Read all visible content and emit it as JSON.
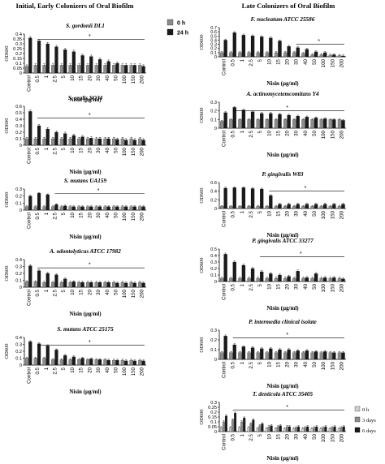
{
  "figure": {
    "left_heading": "Initial, Early Colonizers of Oral Biofilm",
    "right_heading": "Late  Colonizers of Oral Biofilm",
    "common_xlabel": "Nisin (µg/ml)",
    "common_ylabel": "OD600",
    "categories": [
      "Control",
      "0.5",
      "1",
      "2.5",
      "5",
      "10",
      "15",
      "20",
      "30",
      "40",
      "50",
      "100",
      "150",
      "200"
    ],
    "legend_top": [
      {
        "name": "0 h",
        "color": "#8c8c8c"
      },
      {
        "name": "24 h",
        "color": "#1a1a1a"
      }
    ],
    "legend_bottom": [
      {
        "name": "0 h",
        "color": "#d0d0d0"
      },
      {
        "name": "3 days",
        "color": "#8c8c8c"
      },
      {
        "name": "6 days",
        "color": "#1a1a1a"
      }
    ],
    "significance_mark": "*"
  },
  "chart_data": [
    {
      "id": "p1",
      "type": "bar",
      "title": "S. gordonii DL1",
      "ylim": [
        0,
        0.4
      ],
      "yticks": [
        "0",
        "0.05",
        "0.1",
        "0.15",
        "0.2",
        "0.25",
        "0.3",
        "0.35",
        "0.4"
      ],
      "series": [
        {
          "name": "0 h",
          "values": [
            0.07,
            0.08,
            0.08,
            0.08,
            0.08,
            0.08,
            0.08,
            0.08,
            0.08,
            0.08,
            0.08,
            0.08,
            0.08,
            0.08
          ]
        },
        {
          "name": "24 h",
          "values": [
            0.36,
            0.33,
            0.3,
            0.27,
            0.24,
            0.22,
            0.18,
            0.17,
            0.14,
            0.12,
            0.1,
            0.08,
            0.08,
            0.07
          ]
        }
      ]
    },
    {
      "id": "p2",
      "type": "bar",
      "title": "S. oralis SO34",
      "ylim": [
        0,
        0.6
      ],
      "yticks": [
        "0",
        "0.1",
        "0.2",
        "0.3",
        "0.4",
        "0.5",
        "0.6"
      ],
      "series": [
        {
          "name": "0 h",
          "values": [
            0.1,
            0.1,
            0.1,
            0.1,
            0.1,
            0.1,
            0.1,
            0.1,
            0.1,
            0.1,
            0.1,
            0.1,
            0.1,
            0.1
          ]
        },
        {
          "name": "24 h",
          "values": [
            0.52,
            0.3,
            0.25,
            0.2,
            0.18,
            0.15,
            0.13,
            0.11,
            0.1,
            0.1,
            0.09,
            0.08,
            0.08,
            0.08
          ]
        }
      ]
    },
    {
      "id": "p3",
      "type": "bar",
      "title": "S. mutans UA159",
      "ylim": [
        0,
        0.3
      ],
      "yticks": [
        "0",
        "0.1",
        "0.2",
        "0.3"
      ],
      "series": [
        {
          "name": "0 h",
          "values": [
            0.05,
            0.05,
            0.05,
            0.05,
            0.05,
            0.05,
            0.05,
            0.05,
            0.05,
            0.05,
            0.05,
            0.05,
            0.05,
            0.05
          ]
        },
        {
          "name": "24 h",
          "values": [
            0.2,
            0.24,
            0.22,
            0.08,
            0.06,
            0.05,
            0.05,
            0.05,
            0.05,
            0.05,
            0.05,
            0.05,
            0.05,
            0.05
          ]
        }
      ]
    },
    {
      "id": "p4",
      "type": "bar",
      "title": "A. odontolyticus ATCC 17982",
      "ylim": [
        0,
        0.4
      ],
      "yticks": [
        "0",
        "0.1",
        "0.2",
        "0.3",
        "0.4"
      ],
      "series": [
        {
          "name": "0 h",
          "values": [
            0.08,
            0.08,
            0.07,
            0.07,
            0.07,
            0.07,
            0.07,
            0.07,
            0.07,
            0.07,
            0.07,
            0.07,
            0.07,
            0.07
          ]
        },
        {
          "name": "24 h",
          "values": [
            0.31,
            0.24,
            0.2,
            0.18,
            0.12,
            0.08,
            0.07,
            0.07,
            0.07,
            0.07,
            0.06,
            0.06,
            0.06,
            0.06
          ]
        }
      ]
    },
    {
      "id": "p5",
      "type": "bar",
      "title": "S. mutans ATCC 25175",
      "ylim": [
        0,
        0.4
      ],
      "yticks": [
        "0",
        "0.1",
        "0.2",
        "0.3",
        "0.4"
      ],
      "series": [
        {
          "name": "0 h",
          "values": [
            0.1,
            0.1,
            0.1,
            0.08,
            0.08,
            0.08,
            0.08,
            0.08,
            0.08,
            0.08,
            0.07,
            0.07,
            0.07,
            0.07
          ]
        },
        {
          "name": "24 h",
          "values": [
            0.34,
            0.31,
            0.28,
            0.22,
            0.14,
            0.12,
            0.1,
            0.09,
            0.08,
            0.07,
            0.07,
            0.06,
            0.06,
            0.06
          ]
        }
      ]
    },
    {
      "id": "p6",
      "type": "bar",
      "title": "F. nucleatum ATCC 25586",
      "ylim": [
        0,
        0.7
      ],
      "yticks": [
        "0",
        "0.1",
        "0.2",
        "0.3",
        "0.4",
        "0.5",
        "0.6",
        "0.7"
      ],
      "series": [
        {
          "name": "0 h",
          "values": [
            0.1,
            0.1,
            0.1,
            0.1,
            0.1,
            0.1,
            0.1,
            0.1,
            0.1,
            0.08,
            0.05,
            0.05,
            0.04,
            0.03
          ]
        },
        {
          "name": "24 h",
          "values": [
            0.4,
            0.58,
            0.52,
            0.5,
            0.48,
            0.45,
            0.38,
            0.25,
            0.22,
            0.18,
            0.12,
            0.1,
            0.05,
            0.02
          ]
        }
      ]
    },
    {
      "id": "p7",
      "type": "bar",
      "title": "A. actinomycetemcomitans  Y4",
      "ylim": [
        0,
        0.3
      ],
      "yticks": [
        "0",
        "0.1",
        "0.2",
        "0.3"
      ],
      "series": [
        {
          "name": "0 h",
          "values": [
            0.08,
            0.1,
            0.1,
            0.1,
            0.1,
            0.1,
            0.1,
            0.1,
            0.1,
            0.1,
            0.1,
            0.1,
            0.1,
            0.1
          ]
        },
        {
          "name": "24 h",
          "values": [
            0.18,
            0.24,
            0.21,
            0.19,
            0.17,
            0.17,
            0.16,
            0.15,
            0.14,
            0.13,
            0.12,
            0.11,
            0.1,
            0.09
          ]
        }
      ]
    },
    {
      "id": "p8",
      "type": "bar",
      "title": "P. gingivalis  W83",
      "ylim": [
        0,
        0.6
      ],
      "yticks": [
        "0",
        "0.2",
        "0.4",
        "0.6"
      ],
      "series": [
        {
          "name": "0 h",
          "values": [
            0.05,
            0.05,
            0.05,
            0.05,
            0.05,
            0.05,
            0.05,
            0.05,
            0.05,
            0.05,
            0.05,
            0.05,
            0.05,
            0.05
          ]
        },
        {
          "name": "24 h",
          "values": [
            0.47,
            0.48,
            0.48,
            0.46,
            0.45,
            0.3,
            0.1,
            0.1,
            0.1,
            0.1,
            0.1,
            0.1,
            0.1,
            0.1
          ]
        }
      ]
    },
    {
      "id": "p9",
      "type": "bar",
      "title": "P. gingivalis ATCC 33277",
      "ylim": [
        0,
        0.5
      ],
      "yticks": [
        "0",
        "0.1",
        "0.2",
        "0.3",
        "0.4",
        "0.5"
      ],
      "series": [
        {
          "name": "0 h",
          "values": [
            0.05,
            0.05,
            0.05,
            0.05,
            0.05,
            0.05,
            0.05,
            0.05,
            0.05,
            0.05,
            0.05,
            0.05,
            0.05,
            0.05
          ]
        },
        {
          "name": "24 h",
          "values": [
            0.42,
            0.3,
            0.25,
            0.2,
            0.15,
            0.12,
            0.1,
            0.08,
            0.16,
            0.06,
            0.12,
            0.06,
            0.06,
            0.04
          ]
        }
      ]
    },
    {
      "id": "p10",
      "type": "bar",
      "title": "P. intermedia clinical isolate",
      "ylim": [
        0,
        0.3
      ],
      "yticks": [
        "0",
        "0.1",
        "0.2",
        "0.3"
      ],
      "series": [
        {
          "name": "0 h",
          "values": [
            0.07,
            0.07,
            0.07,
            0.07,
            0.07,
            0.07,
            0.07,
            0.07,
            0.07,
            0.07,
            0.07,
            0.07,
            0.07,
            0.07
          ]
        },
        {
          "name": "24 h",
          "values": [
            0.24,
            0.15,
            0.13,
            0.12,
            0.11,
            0.11,
            0.1,
            0.1,
            0.09,
            0.09,
            0.08,
            0.08,
            0.07,
            0.07
          ]
        }
      ]
    },
    {
      "id": "p11",
      "type": "bar",
      "title": "T. denticola ATCC 35405",
      "ylim": [
        0,
        0.3
      ],
      "yticks": [
        "0",
        "0.05",
        "0.1",
        "0.15",
        "0.2",
        "0.25",
        "0.3"
      ],
      "series": [
        {
          "name": "0 h",
          "values": [
            0.04,
            0.04,
            0.04,
            0.04,
            0.03,
            0.03,
            0.03,
            0.03,
            0.03,
            0.03,
            0.03,
            0.03,
            0.03,
            0.03
          ]
        },
        {
          "name": "3 days",
          "values": [
            0.1,
            0.12,
            0.1,
            0.08,
            0.06,
            0.05,
            0.05,
            0.05,
            0.04,
            0.04,
            0.04,
            0.04,
            0.04,
            0.04
          ]
        },
        {
          "name": "6 days",
          "values": [
            0.16,
            0.19,
            0.14,
            0.12,
            0.08,
            0.06,
            0.06,
            0.05,
            0.05,
            0.05,
            0.05,
            0.05,
            0.05,
            0.05
          ]
        }
      ]
    }
  ]
}
